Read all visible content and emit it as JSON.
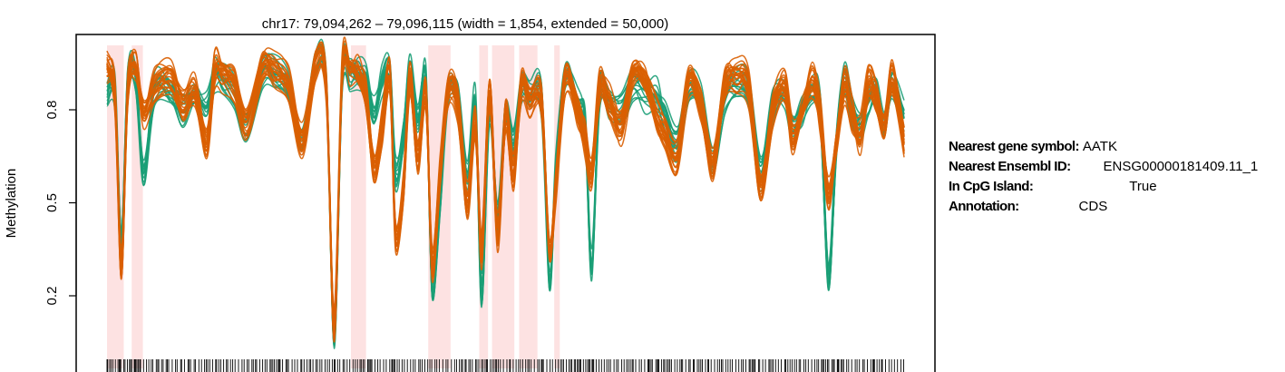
{
  "chart_data": {
    "type": "line",
    "title": "chr17: 79,094,262 – 79,096,115 (width = 1,854, extended = 50,000)",
    "ylabel": "Methylation",
    "xlabel": "",
    "ylim": [
      0.0,
      1.0
    ],
    "yticks": [
      0.2,
      0.5,
      0.8
    ],
    "ytick_labels": [
      "0.2",
      "0.5",
      "0.8"
    ],
    "x_ticks_shown": false,
    "grid": false,
    "legend": "none",
    "series_colors": {
      "group_a": "#d95f02",
      "group_b": "#1b9e77"
    },
    "highlight_color": "#fde2e2",
    "highlight_regions_x": [
      [
        0.0,
        0.021
      ],
      [
        0.031,
        0.045
      ],
      [
        0.306,
        0.325
      ],
      [
        0.403,
        0.431
      ],
      [
        0.467,
        0.478
      ],
      [
        0.483,
        0.511
      ],
      [
        0.517,
        0.54
      ],
      [
        0.561,
        0.568
      ]
    ],
    "group_a_profile": {
      "x": [
        0.0,
        0.01,
        0.018,
        0.026,
        0.036,
        0.046,
        0.06,
        0.08,
        0.095,
        0.11,
        0.125,
        0.135,
        0.145,
        0.16,
        0.175,
        0.195,
        0.21,
        0.228,
        0.245,
        0.262,
        0.275,
        0.285,
        0.295,
        0.305,
        0.315,
        0.325,
        0.335,
        0.345,
        0.355,
        0.362,
        0.372,
        0.38,
        0.39,
        0.4,
        0.408,
        0.418,
        0.428,
        0.44,
        0.452,
        0.462,
        0.47,
        0.48,
        0.49,
        0.5,
        0.51,
        0.52,
        0.53,
        0.545,
        0.555,
        0.563,
        0.575,
        0.59,
        0.6,
        0.608,
        0.618,
        0.63,
        0.645,
        0.66,
        0.675,
        0.69,
        0.7,
        0.715,
        0.73,
        0.745,
        0.76,
        0.775,
        0.79,
        0.805,
        0.82,
        0.835,
        0.85,
        0.86,
        0.872,
        0.885,
        0.895,
        0.905,
        0.915,
        0.925,
        0.935,
        0.945,
        0.955,
        0.965,
        0.975,
        0.985,
        1.0
      ],
      "y": [
        0.94,
        0.84,
        0.3,
        0.86,
        0.95,
        0.8,
        0.88,
        0.9,
        0.82,
        0.86,
        0.7,
        0.93,
        0.92,
        0.88,
        0.76,
        0.94,
        0.93,
        0.88,
        0.7,
        0.96,
        0.88,
        0.1,
        0.92,
        0.93,
        0.93,
        0.85,
        0.62,
        0.75,
        0.9,
        0.4,
        0.55,
        0.9,
        0.65,
        0.86,
        0.3,
        0.6,
        0.85,
        0.82,
        0.5,
        0.75,
        0.35,
        0.85,
        0.4,
        0.78,
        0.6,
        0.88,
        0.83,
        0.82,
        0.35,
        0.55,
        0.9,
        0.8,
        0.7,
        0.6,
        0.88,
        0.83,
        0.75,
        0.92,
        0.9,
        0.78,
        0.72,
        0.65,
        0.9,
        0.8,
        0.62,
        0.88,
        0.91,
        0.87,
        0.55,
        0.8,
        0.88,
        0.72,
        0.8,
        0.89,
        0.78,
        0.53,
        0.7,
        0.88,
        0.78,
        0.72,
        0.88,
        0.85,
        0.75,
        0.9,
        0.7
      ]
    },
    "group_b_profile": {
      "x": [
        0.0,
        0.01,
        0.018,
        0.026,
        0.036,
        0.046,
        0.06,
        0.08,
        0.095,
        0.11,
        0.125,
        0.135,
        0.145,
        0.16,
        0.175,
        0.195,
        0.21,
        0.228,
        0.245,
        0.262,
        0.275,
        0.285,
        0.295,
        0.305,
        0.315,
        0.325,
        0.335,
        0.345,
        0.355,
        0.362,
        0.372,
        0.38,
        0.39,
        0.4,
        0.408,
        0.418,
        0.428,
        0.44,
        0.452,
        0.462,
        0.47,
        0.48,
        0.49,
        0.5,
        0.51,
        0.52,
        0.53,
        0.545,
        0.555,
        0.563,
        0.575,
        0.59,
        0.6,
        0.608,
        0.618,
        0.63,
        0.645,
        0.66,
        0.675,
        0.69,
        0.7,
        0.715,
        0.73,
        0.745,
        0.76,
        0.775,
        0.79,
        0.805,
        0.82,
        0.835,
        0.85,
        0.86,
        0.872,
        0.885,
        0.895,
        0.905,
        0.915,
        0.925,
        0.935,
        0.945,
        0.955,
        0.965,
        0.975,
        0.985,
        1.0
      ],
      "y": [
        0.86,
        0.85,
        0.37,
        0.88,
        0.9,
        0.6,
        0.86,
        0.87,
        0.8,
        0.84,
        0.82,
        0.92,
        0.9,
        0.86,
        0.74,
        0.93,
        0.92,
        0.87,
        0.7,
        0.95,
        0.88,
        0.06,
        0.9,
        0.92,
        0.92,
        0.9,
        0.8,
        0.9,
        0.92,
        0.6,
        0.72,
        0.92,
        0.78,
        0.9,
        0.22,
        0.52,
        0.86,
        0.85,
        0.58,
        0.82,
        0.22,
        0.8,
        0.45,
        0.8,
        0.7,
        0.88,
        0.85,
        0.83,
        0.25,
        0.6,
        0.92,
        0.82,
        0.75,
        0.3,
        0.85,
        0.83,
        0.8,
        0.88,
        0.85,
        0.84,
        0.78,
        0.7,
        0.86,
        0.82,
        0.65,
        0.85,
        0.88,
        0.85,
        0.6,
        0.82,
        0.86,
        0.75,
        0.8,
        0.85,
        0.8,
        0.26,
        0.68,
        0.9,
        0.8,
        0.74,
        0.82,
        0.85,
        0.74,
        0.88,
        0.78
      ]
    }
  },
  "info_panel": [
    {
      "key": "Nearest gene symbol:",
      "value": "AATK"
    },
    {
      "key": "Nearest Ensembl ID:",
      "value": "ENSG00000181409.11_1"
    },
    {
      "key": "In CpG Island:",
      "value": "True"
    },
    {
      "key": "Annotation:",
      "value": "CDS"
    }
  ]
}
